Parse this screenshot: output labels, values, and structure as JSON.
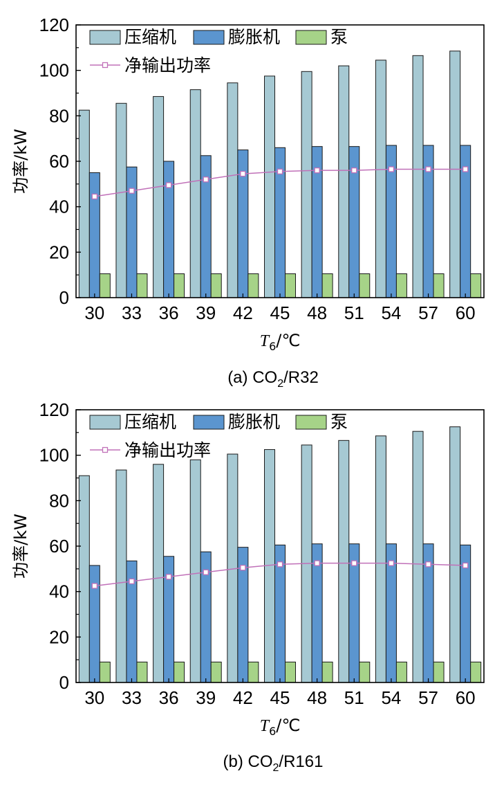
{
  "colors": {
    "compressor": "#a6c9d3",
    "expander": "#5b95cf",
    "pump": "#a6d388",
    "net": "#c070b8",
    "bar_stroke": "#1a1a1a"
  },
  "chart_data": [
    {
      "type": "bar",
      "title": "",
      "caption_prefix": "(a) CO",
      "caption_sub": "2",
      "caption_suffix": "/R32",
      "xlabel_main": "T",
      "xlabel_sub": "6",
      "xlabel_unit": "/℃",
      "ylabel": "功率/kW",
      "ylim": [
        0,
        120
      ],
      "yticks": [
        0,
        20,
        40,
        60,
        80,
        100,
        120
      ],
      "categories": [
        "30",
        "33",
        "36",
        "39",
        "42",
        "45",
        "48",
        "51",
        "54",
        "57",
        "60"
      ],
      "series": [
        {
          "name": "压缩机",
          "kind": "bar",
          "values": [
            82.5,
            85.5,
            88.5,
            91.5,
            94.5,
            97.5,
            99.5,
            102,
            104.5,
            106.5,
            108.5
          ]
        },
        {
          "name": "膨胀机",
          "kind": "bar",
          "values": [
            55,
            57.5,
            60,
            62.5,
            65,
            66,
            66.5,
            66.5,
            67,
            67,
            67
          ]
        },
        {
          "name": "泵",
          "kind": "bar",
          "values": [
            10.5,
            10.5,
            10.5,
            10.5,
            10.5,
            10.5,
            10.5,
            10.5,
            10.5,
            10.5,
            10.5
          ]
        },
        {
          "name": "净输出功率",
          "kind": "line",
          "values": [
            44.5,
            47,
            49.5,
            52,
            54.5,
            55.5,
            56,
            56,
            56.5,
            56.5,
            56.5
          ]
        }
      ]
    },
    {
      "type": "bar",
      "title": "",
      "caption_prefix": "(b) CO",
      "caption_sub": "2",
      "caption_suffix": "/R161",
      "xlabel_main": "T",
      "xlabel_sub": "6",
      "xlabel_unit": "/℃",
      "ylabel": "功率/kW",
      "ylim": [
        0,
        120
      ],
      "yticks": [
        0,
        20,
        40,
        60,
        80,
        100,
        120
      ],
      "categories": [
        "30",
        "33",
        "36",
        "39",
        "42",
        "45",
        "48",
        "51",
        "54",
        "57",
        "60"
      ],
      "series": [
        {
          "name": "压缩机",
          "kind": "bar",
          "values": [
            91,
            93.5,
            96,
            98,
            100.5,
            102.5,
            104.5,
            106.5,
            108.5,
            110.5,
            112.5
          ]
        },
        {
          "name": "膨胀机",
          "kind": "bar",
          "values": [
            51.5,
            53.5,
            55.5,
            57.5,
            59.5,
            60.5,
            61,
            61,
            61,
            61,
            60.5
          ]
        },
        {
          "name": "泵",
          "kind": "bar",
          "values": [
            9,
            9,
            9,
            9,
            9,
            9,
            9,
            9,
            9,
            9,
            9
          ]
        },
        {
          "name": "净输出功率",
          "kind": "line",
          "values": [
            42.5,
            44.5,
            46.5,
            48.5,
            50.5,
            52,
            52.5,
            52.5,
            52.5,
            52,
            51.5
          ]
        }
      ]
    }
  ]
}
